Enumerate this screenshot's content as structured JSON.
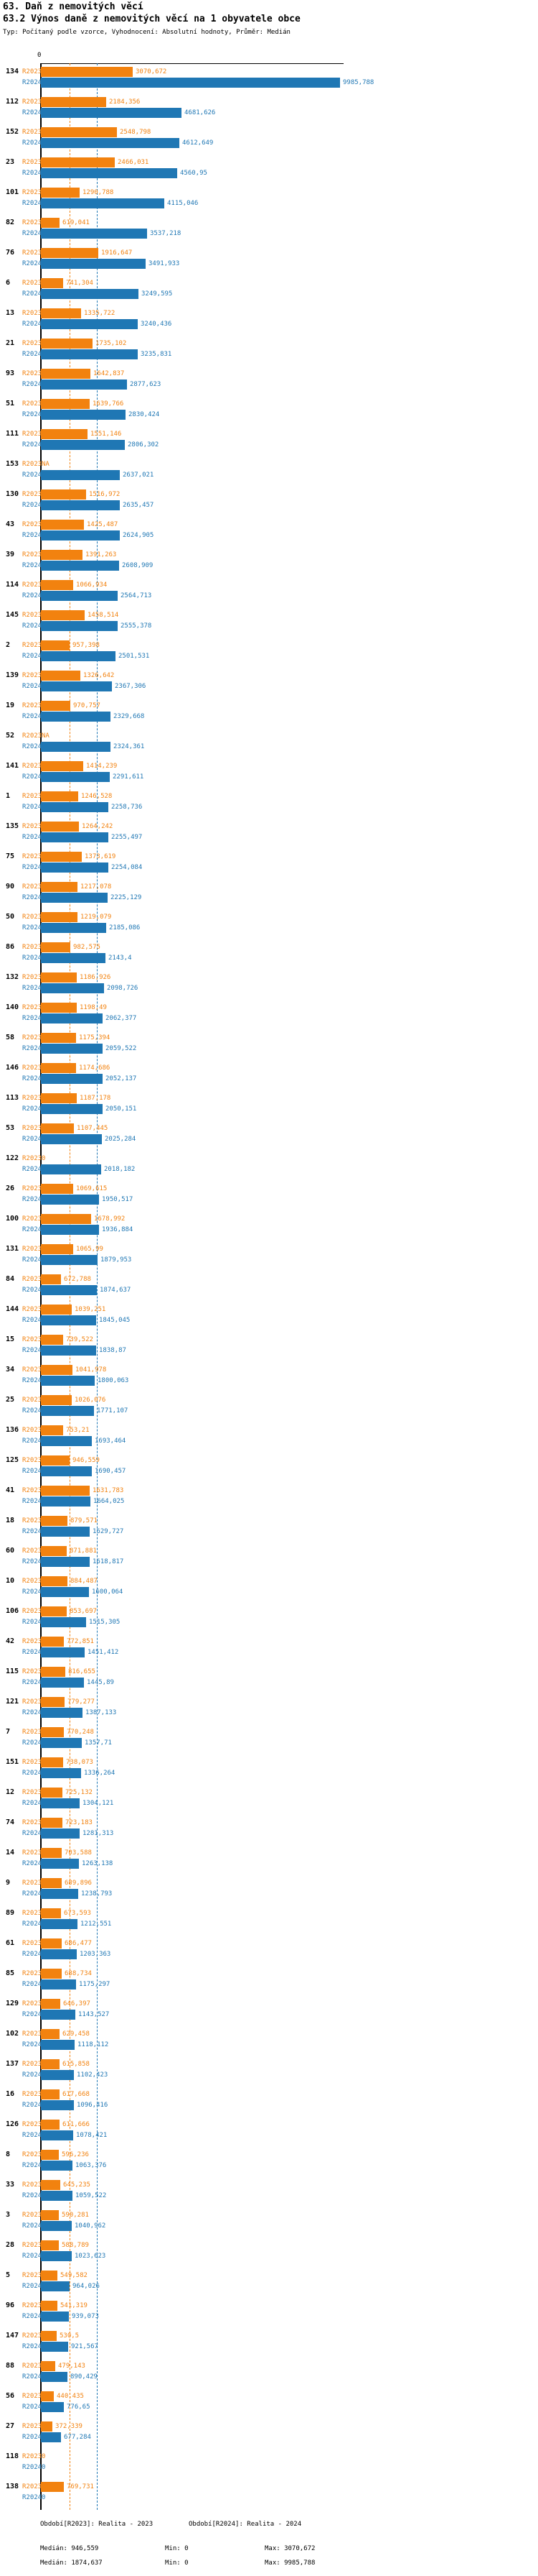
{
  "header": {
    "title": "63. Daň z nemovitých věcí",
    "subtitle": "63.2 Výnos daně z nemovitých věcí na 1 obyvatele obce",
    "meta": "Typ: Počítaný podle vzorce, Vyhodnocení: Absolutní hodnoty, Průměr: Medián"
  },
  "colors": {
    "r2023": "#F2820F",
    "r2024": "#1F77B4",
    "axis": "#000000"
  },
  "chart_data": {
    "type": "bar",
    "orientation": "horizontal",
    "axis_zero_label": "0",
    "xlim": [
      0,
      10100
    ],
    "series_labels": [
      "R2023",
      "R2024"
    ],
    "medians": {
      "R2023": 946.559,
      "R2024": 1874.637
    },
    "rows": [
      {
        "id": "134",
        "r2023": "3070,672",
        "r2024": "9985,788"
      },
      {
        "id": "112",
        "r2023": "2184,356",
        "r2024": "4681,626"
      },
      {
        "id": "152",
        "r2023": "2548,798",
        "r2024": "4612,649"
      },
      {
        "id": "23",
        "r2023": "2466,031",
        "r2024": "4560,95"
      },
      {
        "id": "101",
        "r2023": "1290,788",
        "r2024": "4115,046"
      },
      {
        "id": "82",
        "r2023": "619,041",
        "r2024": "3537,218"
      },
      {
        "id": "76",
        "r2023": "1916,647",
        "r2024": "3491,933"
      },
      {
        "id": "6",
        "r2023": "741,304",
        "r2024": "3249,595"
      },
      {
        "id": "13",
        "r2023": "1335,722",
        "r2024": "3240,436"
      },
      {
        "id": "21",
        "r2023": "1735,102",
        "r2024": "3235,831"
      },
      {
        "id": "93",
        "r2023": "1642,837",
        "r2024": "2877,623"
      },
      {
        "id": "51",
        "r2023": "1639,766",
        "r2024": "2830,424"
      },
      {
        "id": "111",
        "r2023": "1551,146",
        "r2024": "2806,302"
      },
      {
        "id": "153",
        "r2023": "NA",
        "r2024": "2637,021"
      },
      {
        "id": "130",
        "r2023": "1516,972",
        "r2024": "2635,457"
      },
      {
        "id": "43",
        "r2023": "1425,487",
        "r2024": "2624,905"
      },
      {
        "id": "39",
        "r2023": "1391,263",
        "r2024": "2608,909"
      },
      {
        "id": "114",
        "r2023": "1066,934",
        "r2024": "2564,713"
      },
      {
        "id": "145",
        "r2023": "1458,514",
        "r2024": "2555,378"
      },
      {
        "id": "2",
        "r2023": "957,398",
        "r2024": "2501,531"
      },
      {
        "id": "139",
        "r2023": "1326,642",
        "r2024": "2367,306"
      },
      {
        "id": "19",
        "r2023": "970,757",
        "r2024": "2329,668"
      },
      {
        "id": "52",
        "r2023": "NA",
        "r2024": "2324,361"
      },
      {
        "id": "141",
        "r2023": "1414,239",
        "r2024": "2291,611"
      },
      {
        "id": "1",
        "r2023": "1246,528",
        "r2024": "2258,736"
      },
      {
        "id": "135",
        "r2023": "1264,242",
        "r2024": "2255,497"
      },
      {
        "id": "75",
        "r2023": "1373,619",
        "r2024": "2254,084"
      },
      {
        "id": "90",
        "r2023": "1217,078",
        "r2024": "2225,129"
      },
      {
        "id": "50",
        "r2023": "1219,079",
        "r2024": "2185,086"
      },
      {
        "id": "86",
        "r2023": "982,575",
        "r2024": "2143,4"
      },
      {
        "id": "132",
        "r2023": "1186,926",
        "r2024": "2098,726"
      },
      {
        "id": "140",
        "r2023": "1198,49",
        "r2024": "2062,377"
      },
      {
        "id": "58",
        "r2023": "1175,394",
        "r2024": "2059,522"
      },
      {
        "id": "146",
        "r2023": "1174,686",
        "r2024": "2052,137"
      },
      {
        "id": "113",
        "r2023": "1187,178",
        "r2024": "2050,151"
      },
      {
        "id": "53",
        "r2023": "1107,445",
        "r2024": "2025,284"
      },
      {
        "id": "122",
        "r2023": "0",
        "r2024": "2018,182"
      },
      {
        "id": "26",
        "r2023": "1069,615",
        "r2024": "1950,517"
      },
      {
        "id": "100",
        "r2023": "1678,992",
        "r2024": "1936,884"
      },
      {
        "id": "131",
        "r2023": "1065,99",
        "r2024": "1879,953"
      },
      {
        "id": "84",
        "r2023": "672,788",
        "r2024": "1874,637"
      },
      {
        "id": "144",
        "r2023": "1039,251",
        "r2024": "1845,045"
      },
      {
        "id": "15",
        "r2023": "739,522",
        "r2024": "1838,87"
      },
      {
        "id": "34",
        "r2023": "1041,978",
        "r2024": "1800,063"
      },
      {
        "id": "25",
        "r2023": "1026,076",
        "r2024": "1771,107"
      },
      {
        "id": "136",
        "r2023": "753,21",
        "r2024": "1693,464"
      },
      {
        "id": "125",
        "r2023": "946,559",
        "r2024": "1690,457"
      },
      {
        "id": "41",
        "r2023": "1631,783",
        "r2024": "1664,025"
      },
      {
        "id": "18",
        "r2023": "879,571",
        "r2024": "1629,727"
      },
      {
        "id": "60",
        "r2023": "871,881",
        "r2024": "1618,817"
      },
      {
        "id": "10",
        "r2023": "884,487",
        "r2024": "1600,064"
      },
      {
        "id": "106",
        "r2023": "853,697",
        "r2024": "1515,305"
      },
      {
        "id": "42",
        "r2023": "772,851",
        "r2024": "1451,412"
      },
      {
        "id": "115",
        "r2023": "816,655",
        "r2024": "1445,89"
      },
      {
        "id": "121",
        "r2023": "779,277",
        "r2024": "1387,133"
      },
      {
        "id": "7",
        "r2023": "770,248",
        "r2024": "1357,71"
      },
      {
        "id": "151",
        "r2023": "738,073",
        "r2024": "1336,264"
      },
      {
        "id": "12",
        "r2023": "725,132",
        "r2024": "1304,121"
      },
      {
        "id": "74",
        "r2023": "723,183",
        "r2024": "1281,313"
      },
      {
        "id": "14",
        "r2023": "703,588",
        "r2024": "1263,138"
      },
      {
        "id": "9",
        "r2023": "689,896",
        "r2024": "1238,793"
      },
      {
        "id": "89",
        "r2023": "673,593",
        "r2024": "1212,551"
      },
      {
        "id": "61",
        "r2023": "686,477",
        "r2024": "1203,363"
      },
      {
        "id": "85",
        "r2023": "688,734",
        "r2024": "1175,297"
      },
      {
        "id": "129",
        "r2023": "646,397",
        "r2024": "1143,527"
      },
      {
        "id": "102",
        "r2023": "629,458",
        "r2024": "1118,112"
      },
      {
        "id": "137",
        "r2023": "615,858",
        "r2024": "1102,423"
      },
      {
        "id": "16",
        "r2023": "617,668",
        "r2024": "1096,416"
      },
      {
        "id": "126",
        "r2023": "611,666",
        "r2024": "1078,421"
      },
      {
        "id": "8",
        "r2023": "596,236",
        "r2024": "1063,376"
      },
      {
        "id": "33",
        "r2023": "645,235",
        "r2024": "1059,522"
      },
      {
        "id": "3",
        "r2023": "590,281",
        "r2024": "1040,962"
      },
      {
        "id": "28",
        "r2023": "588,789",
        "r2024": "1023,623"
      },
      {
        "id": "5",
        "r2023": "549,582",
        "r2024": "964,026"
      },
      {
        "id": "96",
        "r2023": "541,319",
        "r2024": "939,073"
      },
      {
        "id": "147",
        "r2023": "530,5",
        "r2024": "921,567"
      },
      {
        "id": "88",
        "r2023": "479,143",
        "r2024": "890,429"
      },
      {
        "id": "56",
        "r2023": "440,435",
        "r2024": "776,65"
      },
      {
        "id": "27",
        "r2023": "372,339",
        "r2024": "677,284"
      },
      {
        "id": "118",
        "r2023": "0",
        "r2024": "0"
      },
      {
        "id": "138",
        "r2023": "769,731",
        "r2024": "0"
      }
    ]
  },
  "footer": {
    "period_2023": "Období[R2023]: Realita - 2023",
    "period_2024": "Období[R2024]: Realita - 2024",
    "stats_2023": {
      "median": "Medián: 946,559",
      "min": "Min: 0",
      "max": "Max: 3070,672"
    },
    "stats_2024": {
      "median": "Medián: 1874,637",
      "min": "Min: 0",
      "max": "Max: 9985,788"
    }
  }
}
